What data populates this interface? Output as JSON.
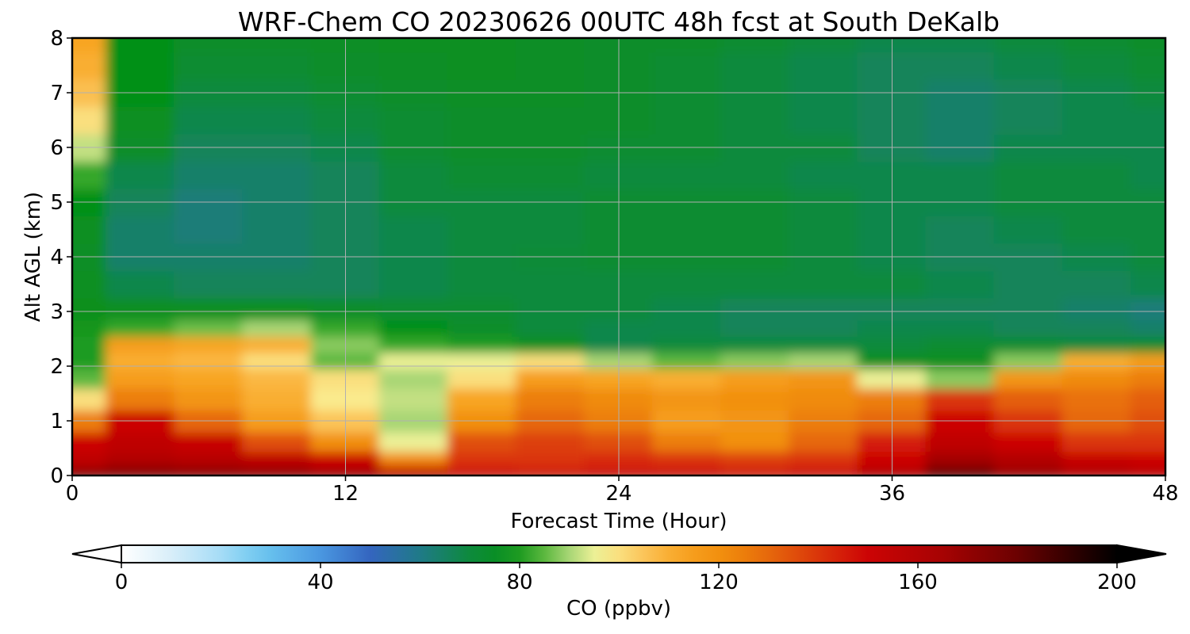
{
  "chart_data": {
    "type": "heatmap",
    "title": "WRF-Chem CO  20230626 00UTC 48h fcst at South DeKalb",
    "xlabel": "Forecast Time (Hour)",
    "ylabel": "Alt AGL (km)",
    "xlim": [
      0,
      48
    ],
    "ylim": [
      0,
      8
    ],
    "x_ticks": [
      "0",
      "12",
      "24",
      "36",
      "48"
    ],
    "y_ticks": [
      "0",
      "1",
      "2",
      "3",
      "4",
      "5",
      "6",
      "7",
      "8"
    ],
    "grid": true,
    "colorbar": {
      "label": "CO  (ppbv)",
      "range": [
        0,
        200
      ],
      "ticks": [
        "0",
        "40",
        "80",
        "120",
        "160",
        "200"
      ],
      "extend": "both"
    },
    "x": [
      0,
      3,
      6,
      9,
      12,
      15,
      18,
      21,
      24,
      27,
      30,
      33,
      36,
      39,
      42,
      45,
      48
    ],
    "y": [
      0,
      0.1,
      0.3,
      0.6,
      1.0,
      1.4,
      1.8,
      2.1,
      2.4,
      2.7,
      3.0,
      3.5,
      4.0,
      4.5,
      5.0,
      5.5,
      6.0,
      6.5,
      7.0,
      7.5,
      8.0
    ],
    "values": [
      [
        185,
        180,
        178,
        178,
        175,
        168,
        160,
        158,
        160,
        160,
        158,
        160,
        170,
        190,
        175,
        165,
        160
      ],
      [
        165,
        170,
        168,
        166,
        160,
        150,
        145,
        143,
        145,
        145,
        143,
        145,
        155,
        175,
        165,
        158,
        155
      ],
      [
        155,
        160,
        158,
        155,
        150,
        120,
        140,
        140,
        142,
        140,
        138,
        140,
        150,
        165,
        160,
        152,
        150
      ],
      [
        150,
        155,
        152,
        135,
        120,
        95,
        135,
        138,
        135,
        125,
        120,
        130,
        145,
        155,
        150,
        140,
        140
      ],
      [
        125,
        150,
        130,
        115,
        105,
        90,
        120,
        130,
        125,
        115,
        118,
        125,
        130,
        150,
        140,
        130,
        135
      ],
      [
        100,
        125,
        118,
        110,
        98,
        92,
        112,
        125,
        122,
        118,
        120,
        122,
        125,
        140,
        132,
        128,
        132
      ],
      [
        85,
        115,
        112,
        108,
        100,
        90,
        100,
        115,
        112,
        110,
        115,
        118,
        95,
        88,
        118,
        122,
        125
      ],
      [
        80,
        110,
        108,
        100,
        85,
        95,
        95,
        100,
        90,
        85,
        88,
        90,
        76,
        76,
        88,
        110,
        115
      ],
      [
        80,
        115,
        112,
        110,
        88,
        82,
        80,
        76,
        68,
        70,
        70,
        70,
        70,
        72,
        72,
        70,
        72
      ],
      [
        79,
        82,
        86,
        90,
        82,
        78,
        74,
        70,
        68,
        68,
        66,
        66,
        68,
        68,
        66,
        66,
        64
      ],
      [
        77,
        76,
        76,
        76,
        74,
        72,
        72,
        70,
        70,
        68,
        66,
        66,
        66,
        66,
        66,
        64,
        62
      ],
      [
        76,
        68,
        66,
        66,
        66,
        68,
        70,
        70,
        70,
        70,
        70,
        70,
        70,
        68,
        66,
        66,
        68
      ],
      [
        75,
        64,
        64,
        64,
        66,
        68,
        70,
        71,
        72,
        72,
        72,
        70,
        68,
        66,
        66,
        68,
        70
      ],
      [
        76,
        64,
        62,
        64,
        66,
        68,
        70,
        70,
        72,
        72,
        72,
        70,
        68,
        66,
        68,
        70,
        70
      ],
      [
        78,
        66,
        62,
        64,
        66,
        70,
        70,
        70,
        72,
        72,
        72,
        70,
        68,
        68,
        70,
        70,
        70
      ],
      [
        82,
        68,
        64,
        64,
        66,
        70,
        72,
        72,
        70,
        70,
        70,
        68,
        68,
        68,
        70,
        70,
        68
      ],
      [
        92,
        74,
        66,
        66,
        68,
        72,
        74,
        74,
        72,
        72,
        70,
        70,
        66,
        64,
        68,
        68,
        68
      ],
      [
        100,
        76,
        68,
        68,
        70,
        72,
        74,
        74,
        74,
        72,
        70,
        68,
        66,
        64,
        66,
        68,
        68
      ],
      [
        106,
        78,
        70,
        70,
        72,
        74,
        75,
        75,
        74,
        72,
        70,
        68,
        66,
        64,
        66,
        68,
        70
      ],
      [
        110,
        78,
        72,
        72,
        74,
        75,
        76,
        75,
        74,
        72,
        70,
        68,
        66,
        66,
        68,
        70,
        72
      ],
      [
        112,
        78,
        74,
        74,
        75,
        76,
        76,
        75,
        74,
        74,
        72,
        70,
        68,
        68,
        70,
        72,
        74
      ]
    ]
  }
}
